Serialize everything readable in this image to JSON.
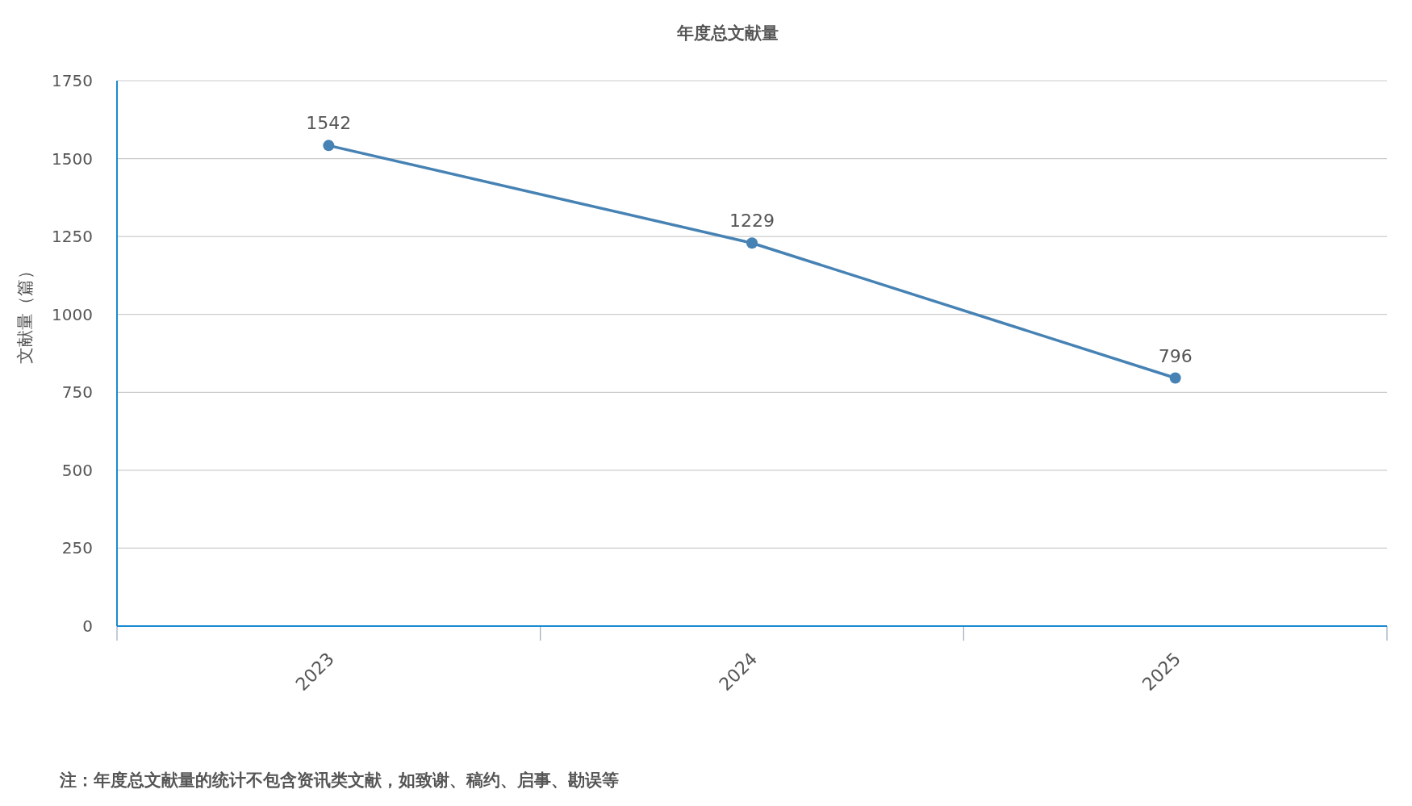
{
  "chart_data": {
    "type": "line",
    "title": "年度总文献量",
    "ylabel": "文献量（篇）",
    "categories": [
      "2023",
      "2024",
      "2025"
    ],
    "series": [
      {
        "color": "#4682b4",
        "values": [
          1542,
          1229,
          796
        ]
      }
    ],
    "ylim": [
      0,
      1750
    ],
    "yticks": [
      0,
      250,
      500,
      750,
      1000,
      1250,
      1500,
      1750
    ],
    "grid": "y",
    "marker": "circle",
    "data_labels": true,
    "annotations": [
      "注：年度总文献量的统计不包含资讯类文献，如致谢、稿约、启事、勘误等"
    ]
  }
}
